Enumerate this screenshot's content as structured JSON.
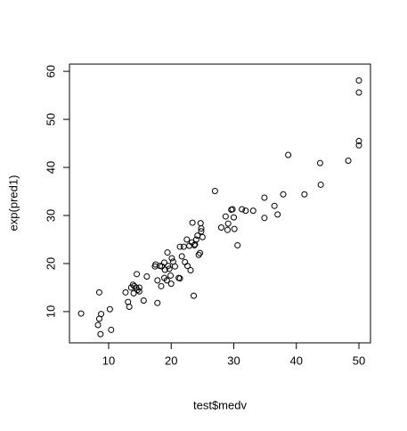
{
  "chart_data": {
    "type": "scatter",
    "x_label": "test$medv",
    "y_label": "exp(pred1)",
    "xlim": [
      3.74,
      51.85
    ],
    "ylim": [
      3.5,
      61.5
    ],
    "xticks": [
      10,
      20,
      30,
      40,
      50
    ],
    "yticks": [
      10,
      20,
      30,
      40,
      50,
      60
    ],
    "color": "#000000",
    "x": [
      5.6,
      8.3,
      8.5,
      8.5,
      8.7,
      8.8,
      10.2,
      10.4,
      12.7,
      13.1,
      13.3,
      13.6,
      13.9,
      14,
      14.1,
      14.4,
      14.5,
      14.6,
      14.9,
      14.9,
      15.6,
      16.1,
      17.4,
      17.5,
      17.8,
      17.8,
      18.2,
      18.4,
      18.5,
      18.9,
      18.9,
      19,
      19.3,
      19.4,
      19.5,
      19.7,
      19.9,
      20,
      20.1,
      20.3,
      20.6,
      21.2,
      21.4,
      21.4,
      21.7,
      22,
      22.2,
      22.5,
      22.6,
      22.9,
      23.1,
      23.3,
      23.4,
      23.6,
      23.7,
      23.8,
      24,
      24.2,
      24.4,
      24.6,
      24.7,
      24.8,
      24.8,
      25,
      27,
      28,
      28.7,
      29,
      29.1,
      29.6,
      29.8,
      30,
      30.1,
      30.6,
      31.3,
      31.9,
      33.1,
      34.9,
      34.9,
      36.5,
      37,
      37.9,
      38.7,
      41.3,
      43.8,
      43.9,
      48.3,
      50,
      50,
      50,
      50
    ],
    "y": [
      9.6,
      7.2,
      8.5,
      14,
      5.3,
      9.5,
      10.5,
      6.2,
      14,
      12,
      11,
      15,
      15.6,
      13.8,
      15.3,
      15,
      17.8,
      14.5,
      14.2,
      15,
      12.3,
      17.3,
      19.4,
      19.8,
      16.5,
      11.8,
      19.5,
      15.3,
      19.4,
      17,
      20.2,
      18.7,
      16.5,
      22.3,
      19.5,
      18.9,
      17.5,
      15.8,
      21.1,
      20.4,
      19.4,
      17,
      16.9,
      23.5,
      21.5,
      23.5,
      20.3,
      25,
      19.5,
      23.7,
      18.6,
      24.4,
      28.5,
      13.3,
      23.8,
      24,
      25,
      25.8,
      21.8,
      22.2,
      28.4,
      26.7,
      27.3,
      25.5,
      35.1,
      27.5,
      29.8,
      27,
      28.3,
      31.2,
      31.3,
      29.6,
      27.2,
      23.8,
      31.3,
      31,
      31,
      33.7,
      29.5,
      32,
      30.2,
      34.4,
      42.6,
      34.4,
      40.9,
      36.4,
      41.4,
      44.6,
      45.5,
      55.6,
      58.1
    ]
  }
}
